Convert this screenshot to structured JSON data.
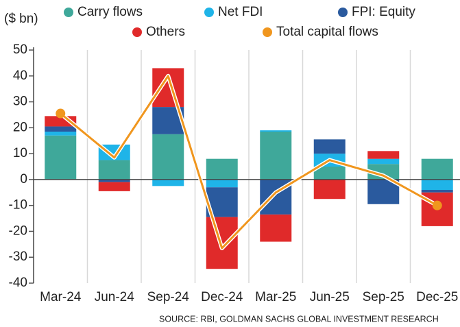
{
  "chart_data": {
    "type": "bar",
    "stacked": true,
    "y_label": "($ bn)",
    "source": "SOURCE: RBI, GOLDMAN SACHS GLOBAL INVESTMENT RESEARCH",
    "categories": [
      "Mar-24",
      "Jun-24",
      "Sep-24",
      "Dec-24",
      "Mar-25",
      "Jun-25",
      "Sep-25",
      "Dec-25"
    ],
    "series": [
      {
        "name": "Carry flows",
        "color": "#3fa89a",
        "values": [
          17,
          7.5,
          17.5,
          8,
          18.5,
          5,
          6,
          8
        ]
      },
      {
        "name": "Net FDI",
        "color": "#1fb4e8",
        "values": [
          1.5,
          6,
          -2.5,
          -3,
          0.5,
          5,
          2,
          -4
        ]
      },
      {
        "name": "FPI: Equity",
        "color": "#2a5a9e",
        "values": [
          2,
          -1,
          10.5,
          -11.5,
          -13.5,
          5.5,
          -9.5,
          -1
        ]
      },
      {
        "name": "Others",
        "color": "#e02a2a",
        "values": [
          4,
          -3.5,
          15,
          -20,
          -10.5,
          -7.5,
          3,
          -13
        ]
      },
      {
        "name": "Total capital flows",
        "color": "#f0961e",
        "type": "line",
        "values": [
          25.5,
          8.5,
          40,
          -26.5,
          -5,
          7.5,
          1.5,
          -10
        ]
      }
    ],
    "ylim": [
      -40,
      50
    ],
    "yticks": [
      -40,
      -30,
      -20,
      -10,
      0,
      10,
      20,
      30,
      40,
      50
    ],
    "grid": true
  }
}
